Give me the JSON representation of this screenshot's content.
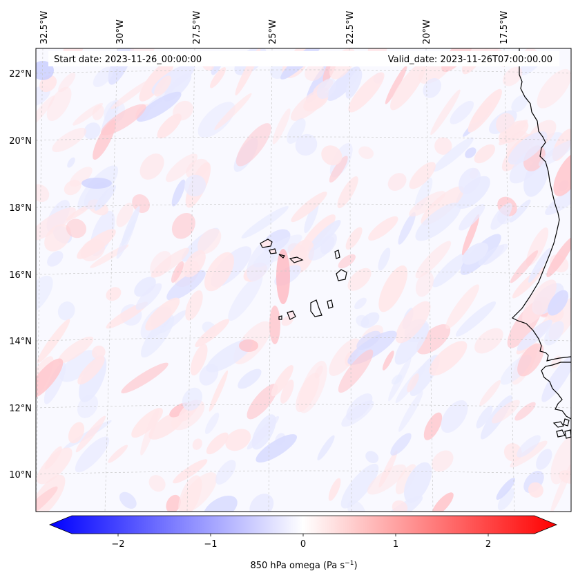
{
  "header": {
    "start_date": "Start date: 2023-11-26_00:00:00",
    "valid_date": "Valid_date: 2023-11-26T07:00:00.00"
  },
  "lon_labels": [
    "32.5°W",
    "30°W",
    "27.5°W",
    "25°W",
    "22.5°W",
    "20°W",
    "17.5°W"
  ],
  "lat_labels": [
    "22°N",
    "20°N",
    "18°N",
    "16°N",
    "14°N",
    "12°N",
    "10°N"
  ],
  "colorbar": {
    "label_text": "850 hPa omega (Pa s",
    "label_exp": "−1",
    "label_close": ")",
    "tick_labels": [
      "−2",
      "−1",
      "0",
      "1",
      "2"
    ],
    "min_color": "#0000ff",
    "mid_color": "#ffffff",
    "max_color": "#ff0000"
  }
}
